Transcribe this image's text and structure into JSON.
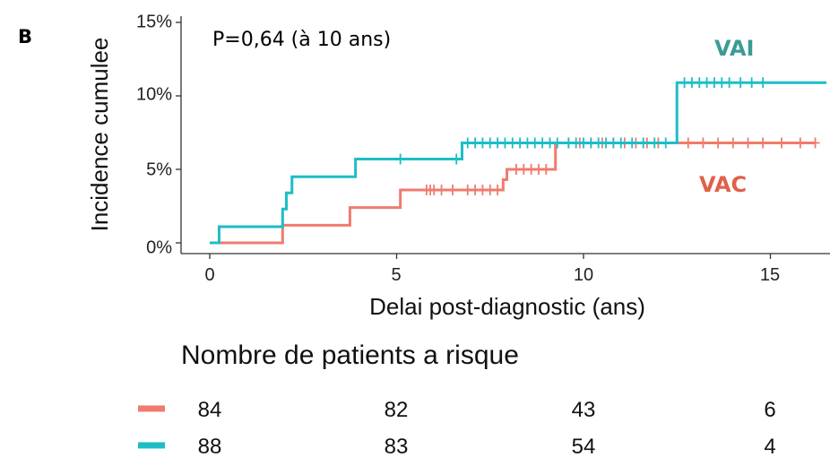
{
  "panel_label": "B",
  "p_value_text": "P=0,64 (à 10 ans)",
  "colors": {
    "VAC": "#F07B6E",
    "VAI": "#1DBDC6",
    "VAI_label": "#3A9C95",
    "VAC_label": "#E0604A"
  },
  "chart_data": {
    "type": "line",
    "xlabel": "Delai post-diagnostic (ans)",
    "ylabel": "Incidence cumulee",
    "xlim": [
      0,
      16.5
    ],
    "ylim": [
      0,
      15
    ],
    "x_ticks": [
      0,
      5,
      10,
      15
    ],
    "x_tick_labels": [
      "0",
      "5",
      "10",
      "15"
    ],
    "y_ticks": [
      0,
      5,
      10,
      15
    ],
    "y_tick_labels": [
      "0%",
      "5%",
      "10%",
      "15%"
    ],
    "grid": false,
    "series": [
      {
        "name": "VAI",
        "step_x": [
          0,
          0.25,
          1.95,
          2.05,
          2.2,
          3.9,
          6.75,
          12.5,
          16.5
        ],
        "step_y": [
          0,
          1.1,
          2.3,
          3.4,
          4.5,
          5.7,
          6.8,
          10.9,
          10.9
        ],
        "censor_x": [
          5.1,
          6.6,
          6.9,
          7.1,
          7.3,
          7.5,
          7.7,
          7.9,
          8.1,
          8.3,
          8.5,
          8.7,
          8.9,
          9.1,
          9.3,
          9.6,
          9.8,
          10.0,
          10.2,
          10.4,
          10.6,
          10.8,
          11.0,
          11.3,
          11.6,
          11.9,
          12.2,
          12.7,
          12.9,
          13.1,
          13.3,
          13.5,
          13.7,
          13.9,
          14.2,
          14.5,
          14.8
        ]
      },
      {
        "name": "VAC",
        "step_x": [
          0,
          1.95,
          3.75,
          5.1,
          7.85,
          7.95,
          9.25,
          16.2
        ],
        "step_y": [
          0,
          1.2,
          2.4,
          3.6,
          4.3,
          5.0,
          6.8,
          6.8
        ],
        "censor_x": [
          5.8,
          5.9,
          6.0,
          6.2,
          6.5,
          6.9,
          7.1,
          7.3,
          7.5,
          7.7,
          8.2,
          8.4,
          8.6,
          8.8,
          9.0,
          9.6,
          9.9,
          10.2,
          10.5,
          10.8,
          11.1,
          11.4,
          11.7,
          12.0,
          12.8,
          13.2,
          13.6,
          14.0,
          14.4,
          14.8,
          15.3,
          15.8,
          16.2
        ]
      }
    ],
    "annotations": [
      {
        "text": "VAI",
        "series": "VAI"
      },
      {
        "text": "VAC",
        "series": "VAC"
      }
    ]
  },
  "risk_table": {
    "title": "Nombre de patients a risque",
    "rows": [
      {
        "series": "VAC",
        "values": [
          "84",
          "82",
          "43",
          "6"
        ]
      },
      {
        "series": "VAI",
        "values": [
          "88",
          "83",
          "54",
          "4"
        ]
      }
    ]
  }
}
